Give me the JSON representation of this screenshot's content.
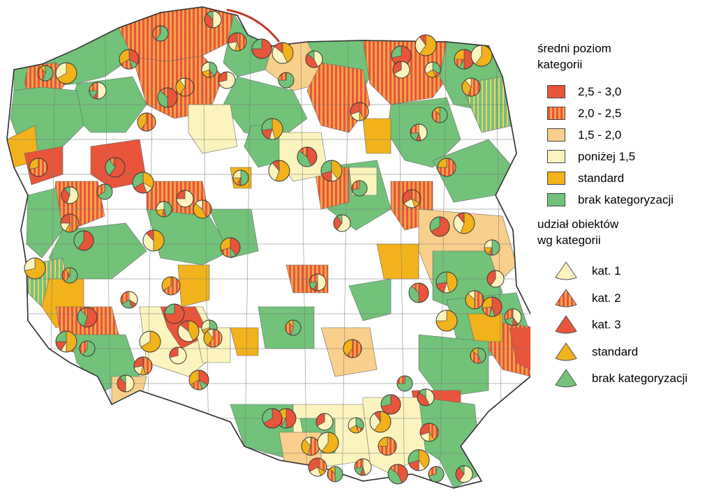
{
  "legend": {
    "mean_title_line1": "średni poziom",
    "mean_title_line2": "kategorii",
    "mean_classes": [
      {
        "label": "2,5 - 3,0",
        "fill": "solid-red"
      },
      {
        "label": "2,0 - 2,5",
        "fill": "striped-red-orange"
      },
      {
        "label": "1,5 - 2,0",
        "fill": "light-orange"
      },
      {
        "label": "poniżej 1,5",
        "fill": "pale-yellow"
      },
      {
        "label": "standard",
        "fill": "orange"
      },
      {
        "label": "brak kategoryzacji",
        "fill": "green"
      }
    ],
    "share_title_line1": "udział obiektów",
    "share_title_line2": "wg kategorii",
    "share_classes": [
      {
        "label": "kat. 1",
        "fill": "pale-yellow"
      },
      {
        "label": "kat. 2",
        "fill": "striped-red-orange"
      },
      {
        "label": "kat. 3",
        "fill": "solid-red"
      },
      {
        "label": "standard",
        "fill": "orange"
      },
      {
        "label": "brak kategoryzacji",
        "fill": "green"
      }
    ]
  },
  "colors": {
    "solid_red": "#e8553a",
    "stripe_red": "#e8553a",
    "stripe_orange": "#f5a34a",
    "light_orange": "#f9cf8c",
    "pale_yellow": "#fbf4be",
    "orange": "#f2b21b",
    "green": "#72c27a",
    "white": "#ffffff",
    "border": "#555555"
  }
}
